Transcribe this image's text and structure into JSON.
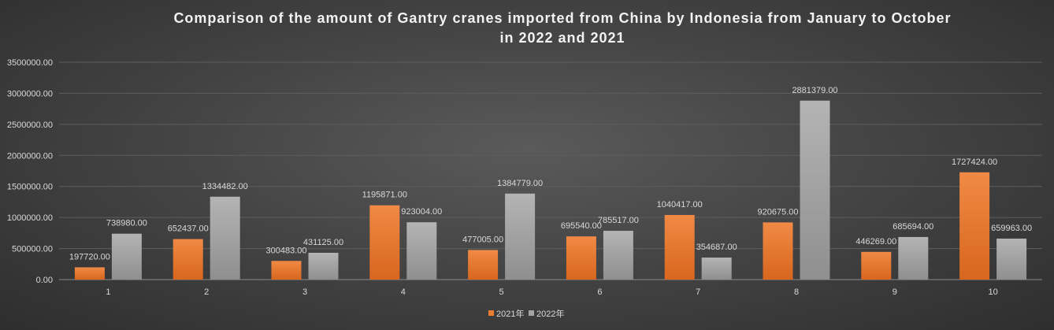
{
  "chart_data": {
    "type": "bar",
    "title_lines": [
      "Comparison of the amount of Gantry cranes imported from China by Indonesia from January to October",
      "in 2022 and 2021"
    ],
    "xlabel": "",
    "ylabel": "",
    "categories": [
      "1",
      "2",
      "3",
      "4",
      "5",
      "6",
      "7",
      "8",
      "9",
      "10"
    ],
    "ylim": [
      0,
      3500000
    ],
    "yticks": [
      0,
      500000,
      1000000,
      1500000,
      2000000,
      2500000,
      3000000,
      3500000
    ],
    "ytick_labels": [
      "0.00",
      "500000.00",
      "1000000.00",
      "1500000.00",
      "2000000.00",
      "2500000.00",
      "3000000.00",
      "3500000.00"
    ],
    "grid": true,
    "legend_position": "bottom",
    "series": [
      {
        "name": "2021年",
        "color": "#ed7d31",
        "values": [
          197720,
          652437,
          300483,
          1195871,
          477005,
          695540,
          1040417,
          920675,
          446269,
          1727424
        ],
        "labels": [
          "197720.00",
          "652437.00",
          "300483.00",
          "1195871.00",
          "477005.00",
          "695540.00",
          "1040417.00",
          "920675.00",
          "446269.00",
          "1727424.00"
        ]
      },
      {
        "name": "2022年",
        "color": "#a5a5a5",
        "values": [
          738980,
          1334482,
          431125,
          923004,
          1384779,
          785517,
          354687,
          2881379,
          685694,
          659963
        ],
        "labels": [
          "738980.00",
          "1334482.00",
          "431125.00",
          "923004.00",
          "1384779.00",
          "785517.00",
          "354687.00",
          "2881379.00",
          "685694.00",
          "659963.00"
        ]
      }
    ]
  }
}
